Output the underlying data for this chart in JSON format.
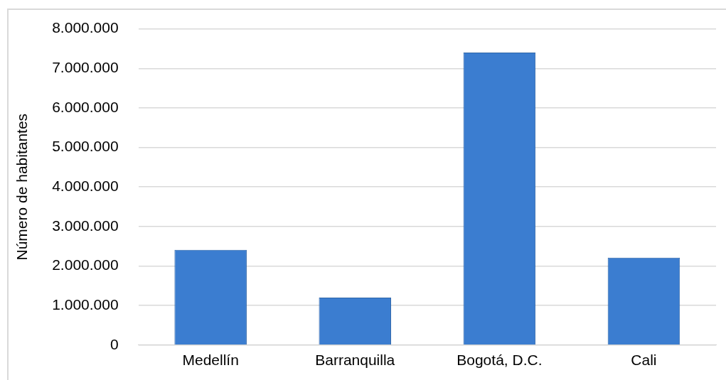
{
  "chart_data": {
    "type": "bar",
    "ylabel": "Número de habitantes",
    "categories": [
      "Medellín",
      "Barranquilla",
      "Bogotá, D.C.",
      "Cali"
    ],
    "values": [
      2410000,
      1200000,
      7400000,
      2210000
    ],
    "color": "#3b7dd0",
    "ylim": [
      0,
      8000000
    ],
    "yticks": [
      {
        "value": 0,
        "label": "0"
      },
      {
        "value": 1000000,
        "label": "1.000.000"
      },
      {
        "value": 2000000,
        "label": "2.000.000"
      },
      {
        "value": 3000000,
        "label": "3.000.000"
      },
      {
        "value": 4000000,
        "label": "4.000.000"
      },
      {
        "value": 5000000,
        "label": "5.000.000"
      },
      {
        "value": 6000000,
        "label": "6.000.000"
      },
      {
        "value": 7000000,
        "label": "7.000.000"
      },
      {
        "value": 8000000,
        "label": "8.000.000"
      }
    ],
    "grid": "y",
    "legend": false
  }
}
